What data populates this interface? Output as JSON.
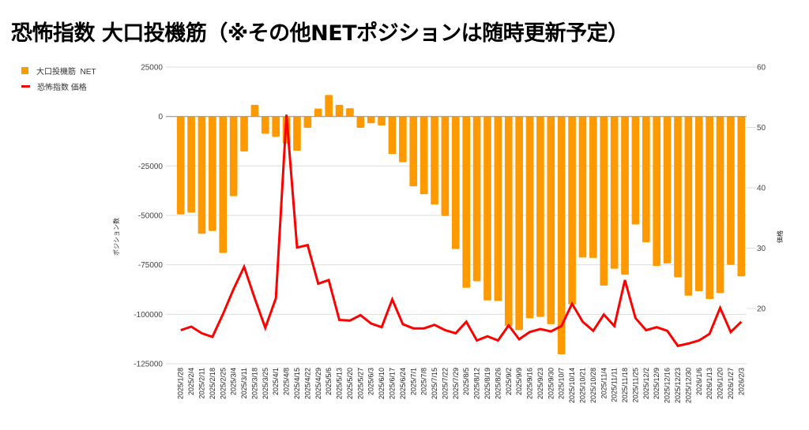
{
  "title": "恐怖指数 大口投機筋（※その他NETポジションは随時更新予定）",
  "colors": {
    "bar": "#ff9900",
    "line": "#ff0000",
    "grid": "#dddddd",
    "zero": "#999999"
  },
  "legend": [
    {
      "label": "大口投機筋  NET",
      "type": "bar"
    },
    {
      "label": "恐怖指数 価格",
      "type": "line"
    }
  ],
  "chart_data": {
    "type": "bar+line",
    "title": "恐怖指数 大口投機筋（※その他NETポジションは随時更新予定）",
    "xlabel": "",
    "ylabel_left": "ポジション数",
    "ylabel_right": "価格",
    "ylim_left": [
      -125000,
      25000
    ],
    "yticks_left": [
      25000,
      0,
      -25000,
      -50000,
      -75000,
      -100000,
      -125000
    ],
    "ylim_right": [
      10.85,
      60
    ],
    "yticks_right": [
      60,
      50,
      40,
      30,
      20
    ],
    "grid": true,
    "legend_position": "top-left",
    "categories": [
      "2025/1/28",
      "2025/2/4",
      "2025/2/11",
      "2025/2/18",
      "2025/2/25",
      "2025/3/4",
      "2025/3/11",
      "2025/3/18",
      "2025/3/25",
      "2025/4/1",
      "2025/4/8",
      "2025/4/15",
      "2025/4/22",
      "2025/4/29",
      "2025/5/6",
      "2025/5/13",
      "2025/5/20",
      "2025/5/27",
      "2025/6/3",
      "2025/6/10",
      "2025/6/17",
      "2025/6/24",
      "2025/7/1",
      "2025/7/8",
      "2025/7/15",
      "2025/7/22",
      "2025/7/29",
      "2025/8/5",
      "2025/8/12",
      "2025/8/19",
      "2025/8/26",
      "2025/9/2",
      "2025/9/9",
      "2025/9/16",
      "2025/9/23",
      "2025/9/30",
      "2025/10/7",
      "2025/10/14",
      "2025/10/21",
      "2025/10/28",
      "2025/11/4",
      "2025/11/11",
      "2025/11/18",
      "2025/11/25",
      "2025/12/2",
      "2025/12/9",
      "2025/12/16",
      "2025/12/23",
      "2025/12/30",
      "2026/1/6",
      "2026/1/13",
      "2026/1/20",
      "2026/1/27",
      "2026/2/3"
    ],
    "series": [
      {
        "name": "大口投機筋  NET",
        "type": "bar",
        "axis": "left",
        "values": [
          -49500,
          -48600,
          -59300,
          -57900,
          -69000,
          -40300,
          -17700,
          5900,
          -8700,
          -10300,
          -13700,
          -17300,
          -5700,
          4000,
          10900,
          5900,
          4200,
          -5700,
          -3400,
          -4500,
          -19000,
          -23100,
          -35300,
          -39300,
          -44500,
          -50300,
          -67000,
          -86600,
          -83300,
          -93000,
          -93300,
          -106000,
          -108000,
          -102000,
          -101300,
          -105000,
          -120200,
          -95000,
          -71300,
          -71500,
          -85500,
          -77000,
          -80000,
          -54600,
          -63600,
          -75600,
          -74300,
          -81300,
          -90600,
          -88300,
          -92300,
          -89300,
          -75000,
          -80800
        ]
      },
      {
        "name": "恐怖指数 価格",
        "type": "line",
        "axis": "right",
        "values": [
          16.4,
          17.0,
          15.9,
          15.3,
          19.1,
          23.2,
          26.9,
          21.7,
          16.8,
          21.7,
          52.1,
          30.1,
          30.5,
          24.1,
          24.7,
          18.1,
          18.0,
          18.9,
          17.5,
          16.9,
          21.5,
          17.4,
          16.7,
          16.7,
          17.3,
          16.4,
          15.9,
          17.8,
          14.7,
          15.4,
          14.7,
          17.2,
          14.9,
          16.1,
          16.6,
          16.2,
          17.1,
          20.8,
          17.8,
          16.3,
          19.0,
          17.1,
          24.7,
          18.4,
          16.4,
          16.9,
          16.3,
          13.8,
          14.2,
          14.7,
          15.8,
          20.1,
          16.1,
          17.8
        ]
      }
    ]
  }
}
